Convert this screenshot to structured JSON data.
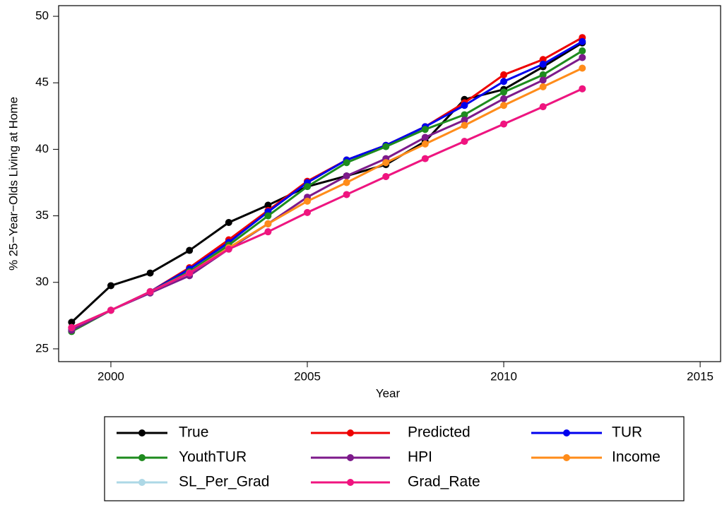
{
  "chart_data": {
    "type": "line",
    "x_label": "Year",
    "y_label": "% 25−Year−Olds Living at Home",
    "x": [
      1999,
      2000,
      2001,
      2002,
      2003,
      2004,
      2005,
      2006,
      2007,
      2008,
      2009,
      2010,
      2011,
      2012
    ],
    "series": [
      {
        "name": "True",
        "color": "#000000",
        "values": [
          27.0,
          29.75,
          30.7,
          32.4,
          34.5,
          35.8,
          37.2,
          38.0,
          38.85,
          40.6,
          43.75,
          44.5,
          46.2,
          48.0
        ]
      },
      {
        "name": "Predicted",
        "color": "#ee0000",
        "values": [
          26.6,
          27.9,
          29.3,
          31.1,
          33.2,
          35.4,
          37.6,
          39.2,
          40.3,
          41.7,
          43.5,
          45.6,
          46.75,
          48.4
        ]
      },
      {
        "name": "TUR",
        "color": "#0000ee",
        "values": [
          26.5,
          27.9,
          29.3,
          31.0,
          33.0,
          35.3,
          37.5,
          39.2,
          40.3,
          41.7,
          43.3,
          45.1,
          46.4,
          48.1
        ]
      },
      {
        "name": "YouthTUR",
        "color": "#1e8b1e",
        "values": [
          26.3,
          27.9,
          29.3,
          30.8,
          32.8,
          35.0,
          37.2,
          39.0,
          40.2,
          41.5,
          42.6,
          44.3,
          45.6,
          47.4
        ]
      },
      {
        "name": "HPI",
        "color": "#7d1a8b",
        "values": [
          26.4,
          27.9,
          29.2,
          30.5,
          32.5,
          34.4,
          36.4,
          38.0,
          39.3,
          40.9,
          42.2,
          43.8,
          45.2,
          46.9
        ]
      },
      {
        "name": "Income",
        "color": "#ff8c1a",
        "values": [
          26.6,
          27.9,
          29.3,
          30.7,
          32.6,
          34.4,
          36.1,
          37.5,
          39.0,
          40.4,
          41.8,
          43.3,
          44.7,
          46.1
        ]
      },
      {
        "name": "SL_Per_Grad",
        "color": "#add8e6",
        "values": [
          26.6,
          27.9,
          29.3,
          30.7,
          32.5,
          33.8,
          35.25,
          36.6,
          37.95,
          39.3,
          40.6,
          41.9,
          43.2,
          44.55
        ]
      },
      {
        "name": "Grad_Rate",
        "color": "#f0147f",
        "values": [
          26.6,
          27.9,
          29.3,
          30.7,
          32.5,
          33.8,
          35.25,
          36.6,
          37.95,
          39.3,
          40.6,
          41.9,
          43.2,
          44.55
        ]
      }
    ],
    "xlim": [
      1998.67,
      2015.52
    ],
    "xticks": [
      2000,
      2005,
      2010,
      2015
    ],
    "ylim": [
      24.04,
      50.8
    ],
    "yticks": [
      25,
      30,
      35,
      40,
      45,
      50
    ],
    "grid": false,
    "legend": "bottom"
  }
}
